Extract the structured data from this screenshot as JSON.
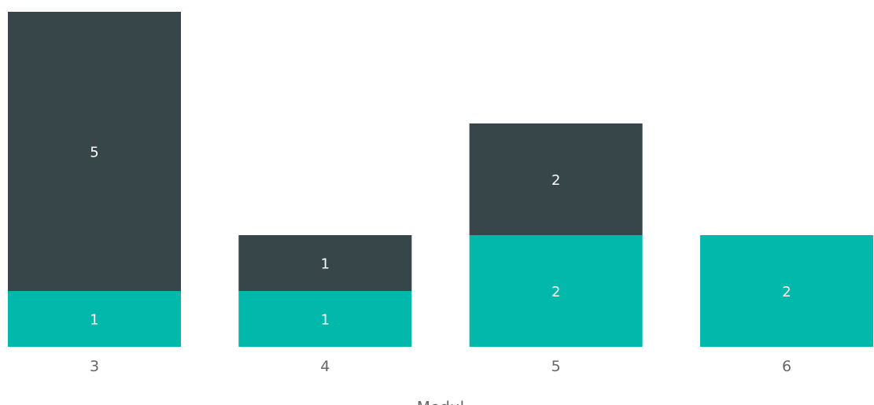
{
  "chart_data": {
    "type": "bar",
    "stacked": true,
    "categories": [
      "3",
      "4",
      "5",
      "6"
    ],
    "series": [
      {
        "values": [
          1,
          1,
          2,
          2
        ],
        "color": "#01B8AA"
      },
      {
        "values": [
          5,
          1,
          2,
          0
        ],
        "color": "#374649"
      }
    ],
    "xlabel": "Modul",
    "ylabel": "",
    "ylim": [
      0,
      6
    ],
    "grid": false,
    "legend": "none",
    "data_labels": true
  }
}
